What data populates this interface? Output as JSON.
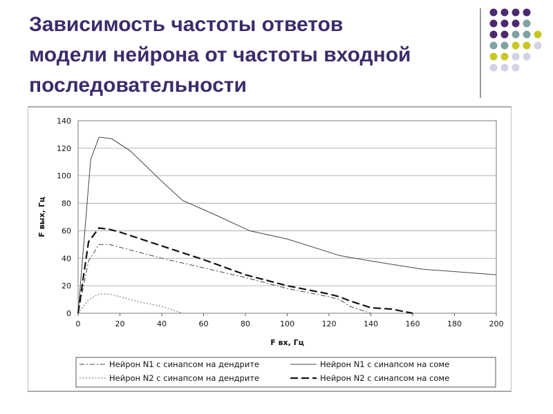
{
  "slide": {
    "title_line1": "Зависимость частоты ответов",
    "title_line2": "модели нейрона от частоты входной",
    "title_line3": "последовательности",
    "accent_colors": [
      "#4b2a6e",
      "#7fa3a3",
      "#c9c726",
      "#d4d2e6"
    ]
  },
  "chart_data": {
    "type": "line",
    "title": "",
    "xlabel": "F вх, Гц",
    "ylabel": "F вых, Гц",
    "xlim": [
      0,
      200
    ],
    "ylim": [
      0,
      140
    ],
    "xticks": [
      0,
      20,
      40,
      60,
      80,
      100,
      120,
      140,
      160,
      180,
      200
    ],
    "yticks": [
      0,
      20,
      40,
      60,
      80,
      100,
      120,
      140
    ],
    "grid": true,
    "legend_position": "bottom",
    "series": [
      {
        "name": "Нейрон N1 с синапсом на дендрите",
        "style": "dashdot",
        "color": "#444444",
        "x": [
          0,
          5,
          10,
          15,
          25,
          40,
          60,
          80,
          100,
          120,
          125,
          130,
          140
        ],
        "y": [
          0,
          38,
          50,
          50,
          46,
          40,
          33,
          26,
          18,
          12,
          10,
          5,
          0
        ]
      },
      {
        "name": "Нейрон N1 с синапсом на соме",
        "style": "solid",
        "color": "#444444",
        "x": [
          0,
          6,
          10,
          16,
          25,
          40,
          50,
          65,
          82,
          100,
          125,
          140,
          165,
          200
        ],
        "y": [
          0,
          112,
          128,
          127,
          118,
          96,
          82,
          72,
          60,
          54,
          42,
          38,
          32,
          28
        ]
      },
      {
        "name": "Нейрон N2 с синапсом на дендрите",
        "style": "dotted",
        "color": "#666666",
        "x": [
          0,
          5,
          10,
          15,
          20,
          30,
          40,
          48,
          50
        ],
        "y": [
          0,
          10,
          14,
          14,
          12,
          8,
          5,
          1,
          0
        ]
      },
      {
        "name": "Нейрон N2 с синапсом на соме",
        "style": "dashed",
        "color": "#111111",
        "x": [
          0,
          5,
          10,
          15,
          20,
          30,
          40,
          60,
          80,
          100,
          120,
          125,
          130,
          140,
          150,
          160
        ],
        "y": [
          0,
          52,
          62,
          61,
          59,
          54,
          49,
          39,
          28,
          20,
          14,
          12,
          9,
          4,
          3,
          0
        ]
      }
    ]
  }
}
